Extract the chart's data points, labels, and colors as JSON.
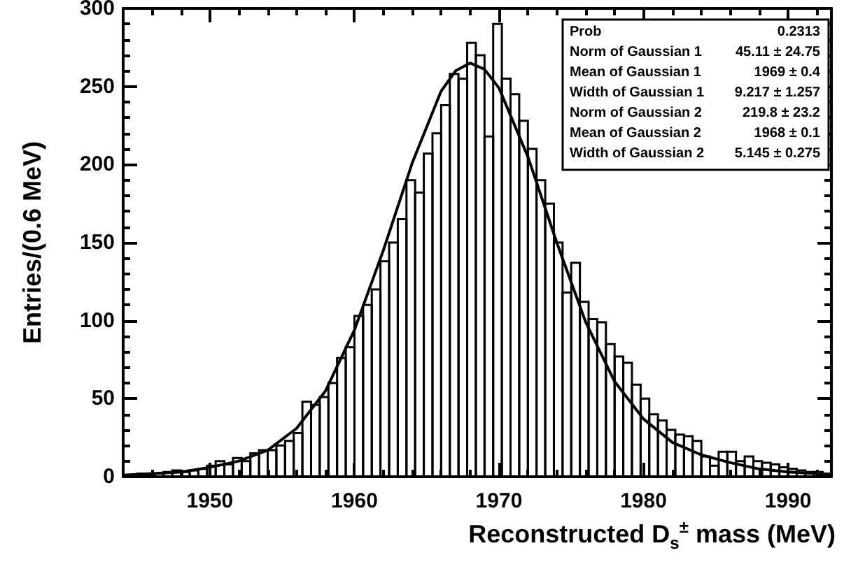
{
  "chart_data": {
    "type": "histogram",
    "xlabel": "Reconstructed D$_{s}$$^{±}$ mass (MeV)",
    "ylabel": "Entries/(0.6 MeV)",
    "bins": [
      1944.4,
      1945.0,
      1945.6,
      1946.2,
      1946.8,
      1947.4,
      1948.0,
      1948.6,
      1949.2,
      1949.8,
      1950.4,
      1951.0,
      1951.6,
      1952.2,
      1952.8,
      1953.4,
      1954.0,
      1954.6,
      1955.2,
      1955.8,
      1956.4,
      1957.0,
      1957.6,
      1958.2,
      1958.8,
      1959.4,
      1960.0,
      1960.6,
      1961.2,
      1961.8,
      1962.4,
      1963.0,
      1963.6,
      1964.2,
      1964.8,
      1965.4,
      1966.0,
      1966.6,
      1967.2,
      1967.8,
      1968.4,
      1969.0,
      1969.6,
      1970.2,
      1970.8,
      1971.4,
      1972.0,
      1972.6,
      1973.2,
      1973.8,
      1974.4,
      1975.0,
      1975.6,
      1976.2,
      1976.8,
      1977.4,
      1978.0,
      1978.6,
      1979.2,
      1979.8,
      1980.4,
      1981.0,
      1981.6,
      1982.2,
      1982.8,
      1983.4,
      1984.0,
      1984.6,
      1985.2,
      1985.8,
      1986.4,
      1987.0,
      1987.6,
      1988.2,
      1988.8,
      1989.4,
      1990.0,
      1990.6,
      1991.2,
      1991.8,
      1992.4,
      1993.0
    ],
    "series": [
      {
        "color": "#000000",
        "values": [
          1,
          2,
          1,
          2,
          3,
          4,
          3,
          4,
          5,
          7,
          10,
          8,
          12,
          10,
          15,
          17,
          17,
          20,
          23,
          28,
          48,
          46,
          51,
          60,
          76,
          83,
          103,
          110,
          120,
          138,
          150,
          165,
          190,
          182,
          207,
          220,
          238,
          258,
          255,
          278,
          270,
          218,
          290,
          255,
          245,
          228,
          210,
          190,
          175,
          150,
          118,
          137,
          112,
          101,
          99,
          85,
          77,
          73,
          59,
          50,
          40,
          36,
          30,
          27,
          26,
          23,
          13,
          7,
          16,
          16,
          10,
          13,
          10,
          9,
          8,
          6,
          5,
          4,
          3,
          3,
          2
        ]
      },
      {
        "type": "line",
        "color": "#000000",
        "x": [
          1944,
          1946,
          1948,
          1950,
          1952,
          1954,
          1956,
          1958,
          1960,
          1962,
          1964,
          1966,
          1967,
          1968,
          1969,
          1970,
          1972,
          1974,
          1976,
          1978,
          1980,
          1982,
          1984,
          1986,
          1988,
          1990,
          1992,
          1993
        ],
        "values": [
          1,
          2,
          3,
          6,
          10,
          17,
          31,
          55,
          94,
          145,
          201,
          247,
          260,
          265,
          261,
          249,
          205,
          150,
          99,
          61,
          37,
          22,
          14,
          9,
          5,
          3,
          2,
          1
        ]
      }
    ],
    "xlim": [
      1944,
      1993
    ],
    "xticks": [
      1950,
      1960,
      1970,
      1980,
      1990
    ],
    "ylim": [
      0,
      300
    ],
    "yticks": [
      0,
      50,
      100,
      150,
      200,
      250,
      300
    ],
    "annotations": [
      "Prob",
      "0.2313",
      "Norm of Gaussian 1",
      "45.11 ± 24.75",
      "Mean of Gaussian 1",
      "1969 ± 0.4",
      "Width of Gaussian 1",
      "9.217 ± 1.257",
      "Norm of Gaussian 2",
      "219.8 ± 23.2",
      "Mean of Gaussian 2",
      "1968 ± 0.1",
      "Width of Gaussian 2",
      "5.145 ± 0.275"
    ],
    "grid": false,
    "marker": "none",
    "line_style": "solid"
  }
}
